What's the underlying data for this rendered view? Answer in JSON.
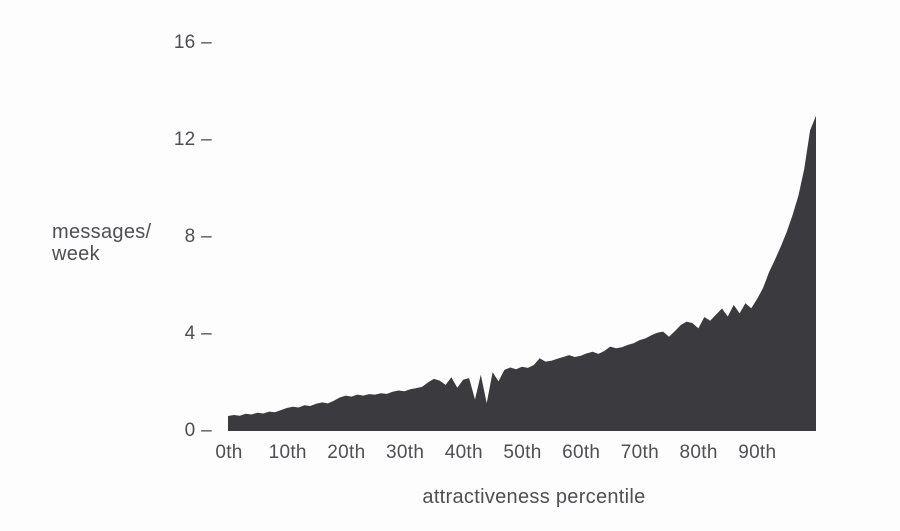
{
  "chart_data": {
    "type": "area",
    "title": "",
    "xlabel": "attractiveness percentile",
    "ylabel": "messages/week",
    "ylabel_lines": [
      "messages/",
      "week"
    ],
    "x_tick_labels": [
      "0th",
      "10th",
      "20th",
      "30th",
      "40th",
      "50th",
      "60th",
      "70th",
      "80th",
      "90th"
    ],
    "y_ticks": [
      {
        "label": "16 –",
        "value": 16
      },
      {
        "label": "12 –",
        "value": 12
      },
      {
        "label": "8 –",
        "value": 8
      },
      {
        "label": "4 –",
        "value": 4
      },
      {
        "label": "0 –",
        "value": 0
      }
    ],
    "xlim": [
      0,
      100
    ],
    "ylim": [
      0,
      16
    ],
    "grid": false,
    "legend": false,
    "colors": {
      "area_fill": "#3b3b3f",
      "text": "#4f4f53",
      "background": "#fdfdfd"
    },
    "series": [
      {
        "name": "messages per week",
        "x": [
          0,
          1,
          2,
          3,
          4,
          5,
          6,
          7,
          8,
          9,
          10,
          11,
          12,
          13,
          14,
          15,
          16,
          17,
          18,
          19,
          20,
          21,
          22,
          23,
          24,
          25,
          26,
          27,
          28,
          29,
          30,
          31,
          32,
          33,
          34,
          35,
          36,
          37,
          38,
          39,
          40,
          41,
          42,
          43,
          44,
          45,
          46,
          47,
          48,
          49,
          50,
          51,
          52,
          53,
          54,
          55,
          56,
          57,
          58,
          59,
          60,
          61,
          62,
          63,
          64,
          65,
          66,
          67,
          68,
          69,
          70,
          71,
          72,
          73,
          74,
          75,
          76,
          77,
          78,
          79,
          80,
          81,
          82,
          83,
          84,
          85,
          86,
          87,
          88,
          89,
          90,
          91,
          92,
          93,
          94,
          95,
          96,
          97,
          98,
          99,
          100
        ],
        "y": [
          0.62,
          0.66,
          0.63,
          0.71,
          0.68,
          0.75,
          0.72,
          0.8,
          0.77,
          0.86,
          0.95,
          1.0,
          0.97,
          1.06,
          1.03,
          1.12,
          1.18,
          1.14,
          1.25,
          1.38,
          1.46,
          1.42,
          1.5,
          1.46,
          1.52,
          1.5,
          1.56,
          1.53,
          1.62,
          1.67,
          1.64,
          1.72,
          1.77,
          1.82,
          2.0,
          2.15,
          2.08,
          1.9,
          2.22,
          1.78,
          2.12,
          2.18,
          1.3,
          2.32,
          1.15,
          2.42,
          2.05,
          2.52,
          2.62,
          2.55,
          2.65,
          2.6,
          2.72,
          3.0,
          2.86,
          2.9,
          2.98,
          3.05,
          3.13,
          3.05,
          3.1,
          3.2,
          3.27,
          3.18,
          3.3,
          3.48,
          3.41,
          3.45,
          3.55,
          3.62,
          3.75,
          3.82,
          3.95,
          4.05,
          4.1,
          3.89,
          4.12,
          4.37,
          4.51,
          4.45,
          4.23,
          4.7,
          4.55,
          4.8,
          5.05,
          4.72,
          5.2,
          4.85,
          5.27,
          5.06,
          5.45,
          5.9,
          6.55,
          7.05,
          7.6,
          8.2,
          8.9,
          9.7,
          10.8,
          12.4,
          13.0
        ]
      }
    ]
  }
}
